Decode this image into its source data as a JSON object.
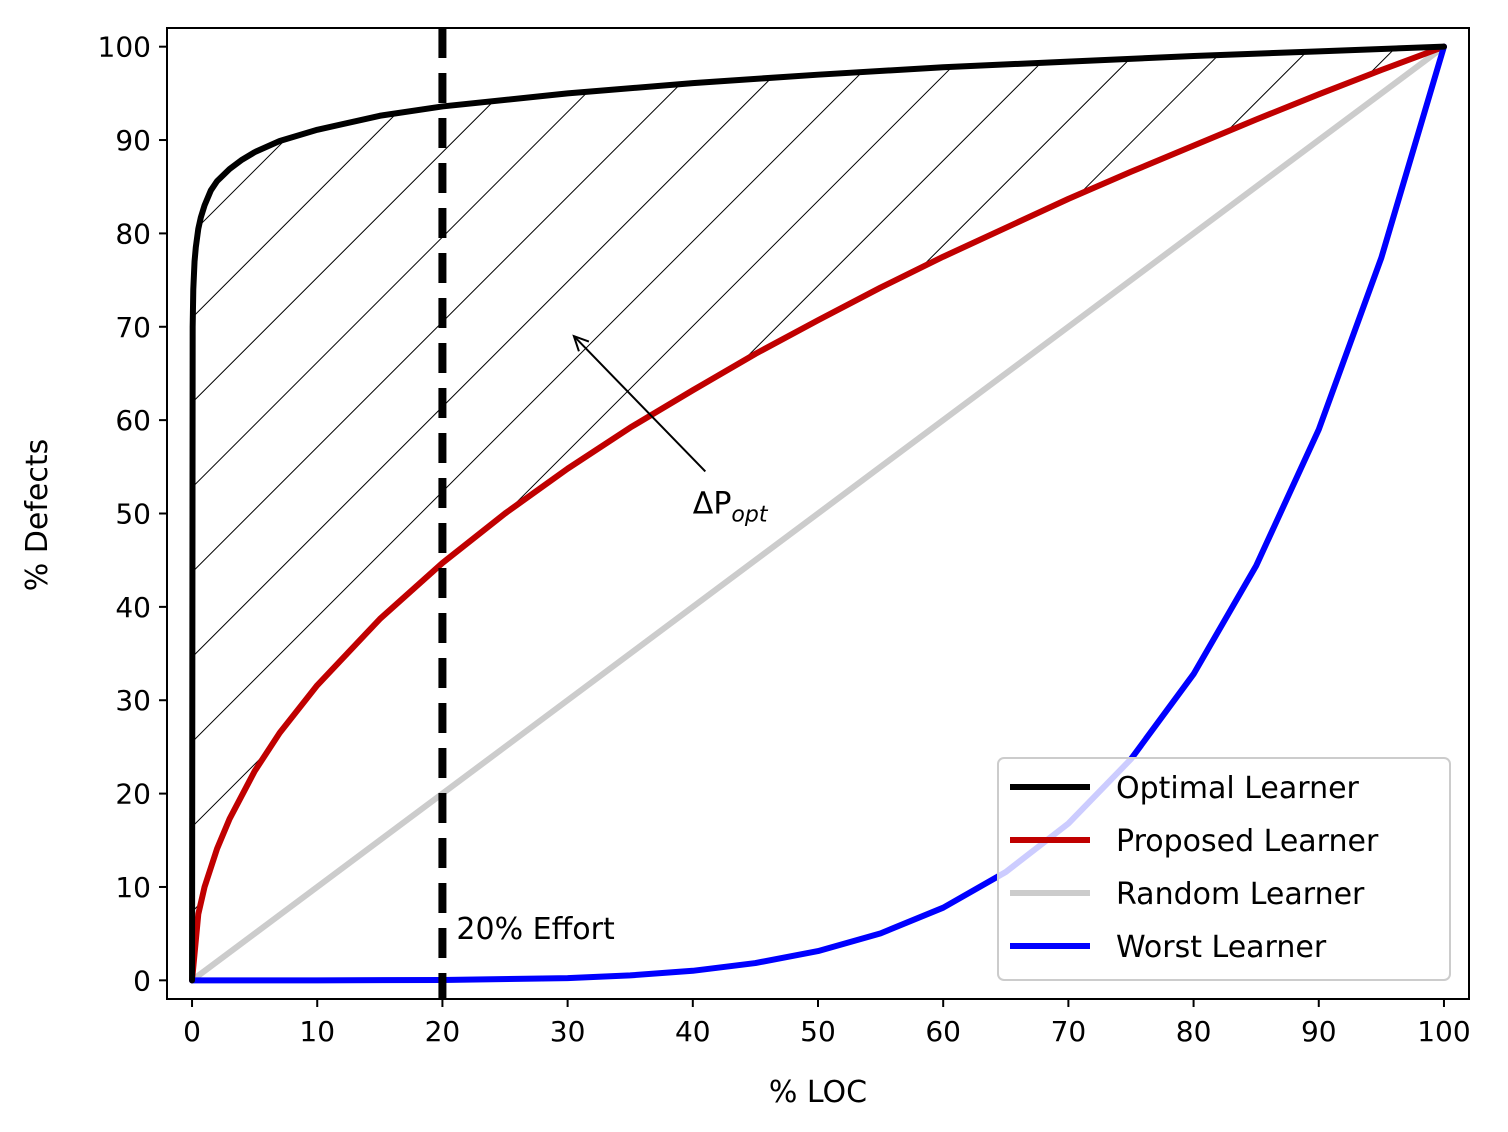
{
  "chart_data": {
    "type": "line",
    "title": "",
    "xlabel": "% LOC",
    "ylabel": "% Defects",
    "xlim": [
      -2,
      102
    ],
    "ylim": [
      -2,
      102
    ],
    "xticks": [
      0,
      10,
      20,
      30,
      40,
      50,
      60,
      70,
      80,
      90,
      100
    ],
    "yticks": [
      0,
      10,
      20,
      30,
      40,
      50,
      60,
      70,
      80,
      90,
      100
    ],
    "grid": false,
    "legend_position": "lower-right",
    "series": [
      {
        "name": "Optimal Learner",
        "color": "#000000",
        "x": [
          0,
          0.05,
          0.1,
          0.2,
          0.3,
          0.5,
          0.7,
          1,
          1.5,
          2,
          3,
          4,
          5,
          7,
          10,
          15,
          20,
          30,
          40,
          50,
          60,
          70,
          80,
          90,
          100
        ],
        "y": [
          0,
          70,
          74,
          77,
          78.5,
          80.5,
          81.7,
          83,
          84.6,
          85.6,
          86.9,
          87.9,
          88.7,
          89.9,
          91.1,
          92.6,
          93.6,
          95,
          96.1,
          97,
          97.8,
          98.4,
          99,
          99.5,
          100
        ]
      },
      {
        "name": "Proposed Learner",
        "color": "#c00000",
        "x": [
          0,
          0.5,
          1,
          2,
          3,
          5,
          7,
          10,
          15,
          20,
          25,
          30,
          35,
          40,
          45,
          50,
          55,
          60,
          65,
          70,
          75,
          80,
          85,
          90,
          95,
          100
        ],
        "y": [
          0,
          7.1,
          10,
          14.1,
          17.3,
          22.4,
          26.5,
          31.6,
          38.7,
          44.7,
          50,
          54.8,
          59.2,
          63.2,
          67.1,
          70.7,
          74.2,
          77.5,
          80.6,
          83.7,
          86.6,
          89.4,
          92.2,
          94.9,
          97.5,
          100
        ]
      },
      {
        "name": "Random Learner",
        "color": "#cccccc",
        "x": [
          0,
          100
        ],
        "y": [
          0,
          100
        ]
      },
      {
        "name": "Worst Learner",
        "color": "#0000ff",
        "x": [
          0,
          10,
          20,
          30,
          35,
          40,
          45,
          50,
          55,
          60,
          65,
          70,
          75,
          80,
          85,
          90,
          95,
          100
        ],
        "y": [
          0,
          0,
          0.03,
          0.24,
          0.53,
          1.02,
          1.85,
          3.13,
          5.03,
          7.78,
          11.6,
          16.8,
          23.7,
          32.8,
          44.4,
          59,
          77.4,
          100
        ]
      }
    ],
    "vline": {
      "x": 20,
      "label": "20% Effort",
      "style": "dashed",
      "color": "#000000"
    },
    "annotation": {
      "label": "ΔP",
      "label_sub": "opt",
      "text_at": [
        40,
        50
      ],
      "arrow_to": [
        30.5,
        69
      ]
    },
    "hatched_region": "between Optimal Learner and Proposed Learner"
  }
}
